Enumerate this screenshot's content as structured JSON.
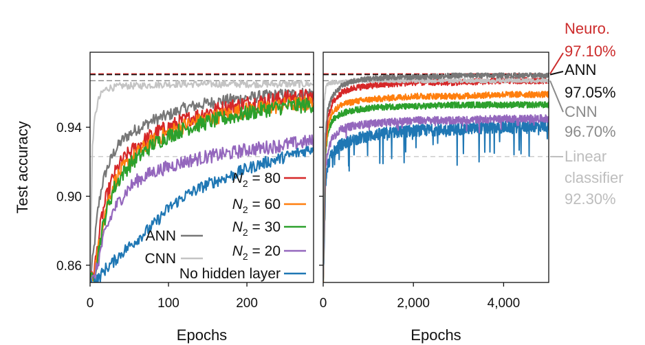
{
  "chart_data": [
    {
      "type": "line",
      "panel": "left",
      "xlabel": "Epochs",
      "ylabel": "Test accuracy",
      "xlim": [
        0,
        285
      ],
      "ylim": [
        0.85,
        0.9835
      ],
      "xticks": [
        0,
        100,
        200
      ],
      "xtick_labels": [
        "0",
        "100",
        "200"
      ],
      "yticks": [
        0.86,
        0.9,
        0.94
      ],
      "ytick_labels": [
        "0.86",
        "0.90",
        "0.94"
      ],
      "reference_lines": [
        {
          "name": "Neuro.",
          "value": 0.971,
          "color": "#cc2b2b",
          "style": "dashed"
        },
        {
          "name": "ANN",
          "value": 0.9705,
          "color": "#111111",
          "style": "dashed"
        },
        {
          "name": "CNN",
          "value": 0.967,
          "color": "#888888",
          "style": "dashed"
        },
        {
          "name": "Linear classifier",
          "value": 0.923,
          "color": "#c8c8c8",
          "style": "dashed"
        }
      ],
      "series": [
        {
          "name": "ANN",
          "color": "#777777",
          "x": [
            0,
            5,
            10,
            15,
            20,
            30,
            40,
            50,
            60,
            80,
            100,
            120,
            150,
            180,
            200,
            220,
            250,
            285
          ],
          "y": [
            0.85,
            0.87,
            0.892,
            0.906,
            0.914,
            0.925,
            0.932,
            0.936,
            0.939,
            0.944,
            0.947,
            0.951,
            0.954,
            0.956,
            0.957,
            0.958,
            0.959,
            0.96
          ]
        },
        {
          "name": "CNN",
          "color": "#c4c4c4",
          "x": [
            0,
            3,
            6,
            10,
            15,
            20,
            25,
            30,
            40,
            60,
            100,
            150,
            200,
            250,
            285
          ],
          "y": [
            0.85,
            0.93,
            0.945,
            0.955,
            0.96,
            0.962,
            0.963,
            0.963,
            0.964,
            0.964,
            0.965,
            0.965,
            0.965,
            0.965,
            0.965
          ]
        },
        {
          "name": "N2 = 80",
          "color": "#d62728",
          "x": [
            0,
            5,
            10,
            15,
            20,
            30,
            40,
            50,
            60,
            80,
            100,
            120,
            150,
            180,
            200,
            220,
            250,
            285
          ],
          "y": [
            0.85,
            0.856,
            0.872,
            0.888,
            0.898,
            0.912,
            0.92,
            0.925,
            0.929,
            0.936,
            0.94,
            0.944,
            0.949,
            0.952,
            0.954,
            0.955,
            0.957,
            0.958
          ]
        },
        {
          "name": "N2 = 60",
          "color": "#ff7f0e",
          "x": [
            0,
            5,
            10,
            15,
            20,
            30,
            40,
            50,
            60,
            80,
            100,
            120,
            150,
            180,
            200,
            220,
            250,
            285
          ],
          "y": [
            0.85,
            0.855,
            0.868,
            0.882,
            0.893,
            0.907,
            0.915,
            0.92,
            0.925,
            0.932,
            0.937,
            0.941,
            0.945,
            0.948,
            0.95,
            0.951,
            0.953,
            0.954
          ]
        },
        {
          "name": "N2 = 30",
          "color": "#2ca02c",
          "x": [
            0,
            5,
            10,
            15,
            20,
            30,
            40,
            50,
            60,
            80,
            100,
            120,
            150,
            180,
            200,
            220,
            250,
            285
          ],
          "y": [
            0.85,
            0.854,
            0.866,
            0.879,
            0.89,
            0.904,
            0.912,
            0.918,
            0.922,
            0.93,
            0.935,
            0.939,
            0.943,
            0.946,
            0.948,
            0.95,
            0.952,
            0.953
          ]
        },
        {
          "name": "N2 = 20",
          "color": "#9467bd",
          "x": [
            0,
            5,
            10,
            15,
            20,
            30,
            40,
            50,
            60,
            80,
            100,
            120,
            150,
            180,
            200,
            220,
            250,
            285
          ],
          "y": [
            0.85,
            0.852,
            0.861,
            0.872,
            0.88,
            0.892,
            0.899,
            0.905,
            0.909,
            0.914,
            0.917,
            0.92,
            0.923,
            0.925,
            0.927,
            0.928,
            0.93,
            0.932
          ]
        },
        {
          "name": "No hidden layer",
          "color": "#1f77b4",
          "x": [
            0,
            5,
            10,
            15,
            20,
            30,
            40,
            50,
            60,
            80,
            100,
            120,
            150,
            180,
            200,
            220,
            250,
            285
          ],
          "y": [
            0.85,
            0.85,
            0.852,
            0.855,
            0.858,
            0.862,
            0.867,
            0.871,
            0.875,
            0.883,
            0.893,
            0.9,
            0.907,
            0.912,
            0.916,
            0.919,
            0.923,
            0.928
          ]
        }
      ]
    },
    {
      "type": "line",
      "panel": "right",
      "xlabel": "Epochs",
      "xlim": [
        0,
        5000
      ],
      "ylim": [
        0.85,
        0.9835
      ],
      "xticks": [
        0,
        2000,
        4000
      ],
      "xtick_labels": [
        "0",
        "2,000",
        "4,000"
      ],
      "series": [
        {
          "name": "ANN",
          "color": "#777777",
          "x": [
            0,
            50,
            100,
            200,
            400,
            700,
            1000,
            1500,
            2000,
            3000,
            4000,
            5000
          ],
          "y": [
            0.85,
            0.935,
            0.95,
            0.958,
            0.964,
            0.967,
            0.968,
            0.969,
            0.969,
            0.97,
            0.97,
            0.97
          ]
        },
        {
          "name": "CNN",
          "color": "#c4c4c4",
          "x": [
            0,
            20,
            60,
            100,
            200,
            400,
            700,
            1000,
            2000,
            3000,
            4000,
            5000
          ],
          "y": [
            0.85,
            0.955,
            0.963,
            0.965,
            0.966,
            0.966,
            0.967,
            0.967,
            0.967,
            0.967,
            0.967,
            0.967
          ]
        },
        {
          "name": "N2 = 80",
          "color": "#d62728",
          "x": [
            0,
            50,
            100,
            200,
            400,
            700,
            1000,
            1500,
            2000,
            3000,
            4000,
            5000
          ],
          "y": [
            0.85,
            0.93,
            0.945,
            0.954,
            0.96,
            0.963,
            0.964,
            0.965,
            0.966,
            0.966,
            0.967,
            0.967
          ]
        },
        {
          "name": "N2 = 60",
          "color": "#ff7f0e",
          "x": [
            0,
            50,
            100,
            200,
            400,
            700,
            1000,
            1500,
            2000,
            3000,
            4000,
            5000
          ],
          "y": [
            0.85,
            0.926,
            0.94,
            0.949,
            0.953,
            0.955,
            0.956,
            0.957,
            0.958,
            0.958,
            0.959,
            0.959
          ]
        },
        {
          "name": "N2 = 30",
          "color": "#2ca02c",
          "x": [
            0,
            50,
            100,
            200,
            400,
            700,
            1000,
            1500,
            2000,
            3000,
            4000,
            5000
          ],
          "y": [
            0.85,
            0.924,
            0.936,
            0.944,
            0.948,
            0.95,
            0.951,
            0.952,
            0.952,
            0.953,
            0.953,
            0.953
          ]
        },
        {
          "name": "N2 = 20",
          "color": "#9467bd",
          "x": [
            0,
            50,
            100,
            200,
            400,
            700,
            1000,
            1500,
            2000,
            3000,
            4000,
            5000
          ],
          "y": [
            0.85,
            0.915,
            0.926,
            0.934,
            0.939,
            0.941,
            0.942,
            0.943,
            0.944,
            0.944,
            0.945,
            0.945
          ]
        },
        {
          "name": "No hidden layer",
          "color": "#1f77b4",
          "x": [
            0,
            50,
            100,
            200,
            400,
            700,
            1000,
            1500,
            2000,
            3000,
            4000,
            5000
          ],
          "y": [
            0.85,
            0.905,
            0.918,
            0.925,
            0.93,
            0.933,
            0.935,
            0.937,
            0.938,
            0.939,
            0.94,
            0.941
          ]
        }
      ],
      "annotations": [
        {
          "lines": [
            "Neuro.",
            "97.10%"
          ],
          "color": "#cc2b2b"
        },
        {
          "lines": [
            "ANN",
            "97.05%"
          ],
          "color": "#111111"
        },
        {
          "lines": [
            "CNN",
            "96.70%"
          ],
          "color": "#8a8a8a"
        },
        {
          "lines": [
            "Linear",
            "classifier",
            "92.30%"
          ],
          "color": "#bdbdbd"
        }
      ]
    }
  ],
  "legend": [
    {
      "label": "N₂ = 80",
      "base": "N",
      "sub": "2",
      "rest": " = 80",
      "color": "#d62728"
    },
    {
      "label": "N₂ = 60",
      "base": "N",
      "sub": "2",
      "rest": " = 60",
      "color": "#ff7f0e"
    },
    {
      "label": "N₂ = 30",
      "base": "N",
      "sub": "2",
      "rest": " = 30",
      "color": "#2ca02c"
    },
    {
      "label": "N₂ = 20",
      "base": "N",
      "sub": "2",
      "rest": " = 20",
      "color": "#9467bd"
    },
    {
      "label": "No hidden layer",
      "color": "#1f77b4"
    },
    {
      "label": "ANN",
      "color": "#777777"
    },
    {
      "label": "CNN",
      "color": "#c4c4c4"
    }
  ],
  "legend_placement": "lower-right of left panel"
}
